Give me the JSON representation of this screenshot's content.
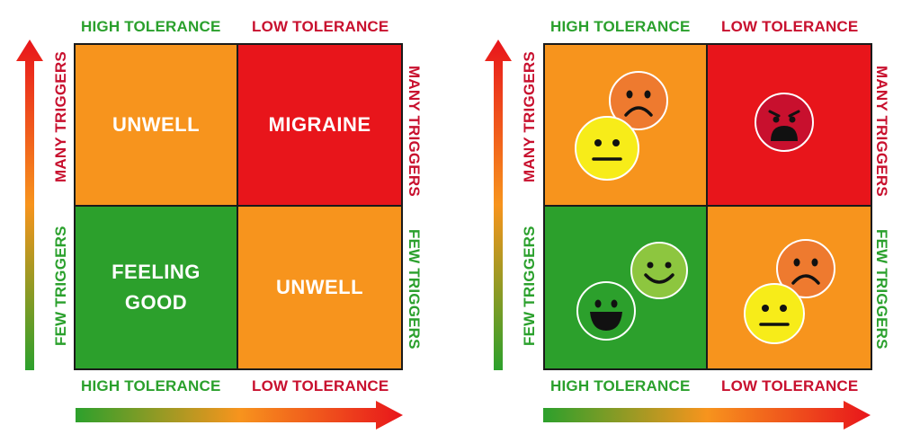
{
  "colors": {
    "green": "#2ca02c",
    "orange": "#f7941d",
    "red": "#e8151b",
    "label_green": "#2aa02c",
    "label_red": "#c8102e"
  },
  "panels": [
    {
      "top_labels": [
        "HIGH TOLERANCE",
        "LOW TOLERANCE"
      ],
      "bottom_labels": [
        "HIGH TOLERANCE",
        "LOW TOLERANCE"
      ],
      "left_labels": [
        "MANY TRIGGERS",
        "FEW TRIGGERS"
      ],
      "right_labels": [
        "MANY TRIGGERS",
        "FEW TRIGGERS"
      ],
      "cells": [
        "UNWELL",
        "MIGRAINE",
        "FEELING GOOD",
        "UNWELL"
      ]
    },
    {
      "top_labels": [
        "HIGH TOLERANCE",
        "LOW TOLERANCE"
      ],
      "bottom_labels": [
        "HIGH TOLERANCE",
        "LOW TOLERANCE"
      ],
      "left_labels": [
        "MANY TRIGGERS",
        "FEW TRIGGERS"
      ],
      "right_labels": [
        "MANY TRIGGERS",
        "FEW TRIGGERS"
      ],
      "faces": {
        "top_left": [
          "sad-face",
          "neutral-face"
        ],
        "top_right": [
          "distressed-face"
        ],
        "bottom_left": [
          "smile-face",
          "big-smile-face"
        ],
        "bottom_right": [
          "sad-face",
          "neutral-face"
        ]
      }
    }
  ]
}
